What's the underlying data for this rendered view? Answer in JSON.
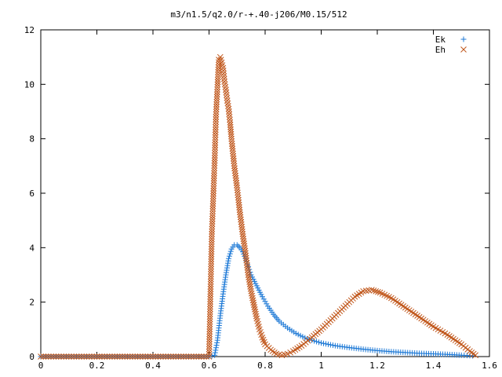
{
  "chart_data": {
    "type": "scatter",
    "title": "m3/n1.5/q2.0/r-+.40-j206/M0.15/512",
    "xlabel": "",
    "ylabel": "",
    "xlim": [
      0,
      1.6
    ],
    "ylim": [
      0,
      12
    ],
    "xticks": [
      "0",
      "0.2",
      "0.4",
      "0.6",
      "0.8",
      "1",
      "1.2",
      "1.4",
      "1.6"
    ],
    "yticks": [
      "0",
      "2",
      "4",
      "6",
      "8",
      "10",
      "12"
    ],
    "grid": false,
    "legend_position": "top-right",
    "series": [
      {
        "name": "Ek",
        "marker": "plus",
        "color": "#1f7ad6",
        "points": [
          [
            0.0,
            0
          ],
          [
            0.1,
            0
          ],
          [
            0.2,
            0
          ],
          [
            0.3,
            0
          ],
          [
            0.4,
            0
          ],
          [
            0.5,
            0
          ],
          [
            0.6,
            0
          ],
          [
            0.62,
            0.05
          ],
          [
            0.63,
            0.6
          ],
          [
            0.64,
            1.5
          ],
          [
            0.65,
            2.3
          ],
          [
            0.66,
            3.0
          ],
          [
            0.67,
            3.6
          ],
          [
            0.68,
            3.95
          ],
          [
            0.69,
            4.1
          ],
          [
            0.7,
            4.1
          ],
          [
            0.71,
            4.0
          ],
          [
            0.72,
            3.85
          ],
          [
            0.73,
            3.6
          ],
          [
            0.74,
            3.3
          ],
          [
            0.75,
            3.0
          ],
          [
            0.77,
            2.6
          ],
          [
            0.79,
            2.2
          ],
          [
            0.81,
            1.85
          ],
          [
            0.83,
            1.55
          ],
          [
            0.85,
            1.3
          ],
          [
            0.88,
            1.05
          ],
          [
            0.91,
            0.85
          ],
          [
            0.95,
            0.65
          ],
          [
            1.0,
            0.5
          ],
          [
            1.05,
            0.4
          ],
          [
            1.1,
            0.33
          ],
          [
            1.15,
            0.27
          ],
          [
            1.2,
            0.22
          ],
          [
            1.25,
            0.18
          ],
          [
            1.3,
            0.15
          ],
          [
            1.35,
            0.12
          ],
          [
            1.4,
            0.1
          ],
          [
            1.45,
            0.08
          ],
          [
            1.5,
            0.05
          ],
          [
            1.54,
            0.03
          ]
        ]
      },
      {
        "name": "Eh",
        "marker": "cross",
        "color": "#c0561a",
        "points": [
          [
            0.0,
            0
          ],
          [
            0.1,
            0
          ],
          [
            0.2,
            0
          ],
          [
            0.3,
            0
          ],
          [
            0.4,
            0
          ],
          [
            0.5,
            0
          ],
          [
            0.6,
            0
          ],
          [
            0.61,
            4.5
          ],
          [
            0.62,
            7.2
          ],
          [
            0.625,
            8.9
          ],
          [
            0.63,
            9.9
          ],
          [
            0.635,
            10.9
          ],
          [
            0.64,
            11.0
          ],
          [
            0.645,
            10.8
          ],
          [
            0.65,
            10.6
          ],
          [
            0.655,
            10.1
          ],
          [
            0.66,
            9.8
          ],
          [
            0.665,
            9.4
          ],
          [
            0.67,
            9.1
          ],
          [
            0.675,
            8.6
          ],
          [
            0.68,
            8.0
          ],
          [
            0.69,
            7.0
          ],
          [
            0.7,
            6.2
          ],
          [
            0.71,
            5.3
          ],
          [
            0.72,
            4.5
          ],
          [
            0.73,
            3.8
          ],
          [
            0.74,
            3.0
          ],
          [
            0.75,
            2.4
          ],
          [
            0.76,
            1.9
          ],
          [
            0.77,
            1.4
          ],
          [
            0.78,
            1.0
          ],
          [
            0.79,
            0.7
          ],
          [
            0.8,
            0.45
          ],
          [
            0.82,
            0.25
          ],
          [
            0.84,
            0.1
          ],
          [
            0.86,
            0.05
          ],
          [
            0.88,
            0.1
          ],
          [
            0.9,
            0.2
          ],
          [
            0.93,
            0.4
          ],
          [
            0.96,
            0.65
          ],
          [
            1.0,
            1.0
          ],
          [
            1.04,
            1.4
          ],
          [
            1.08,
            1.8
          ],
          [
            1.12,
            2.2
          ],
          [
            1.15,
            2.4
          ],
          [
            1.18,
            2.45
          ],
          [
            1.21,
            2.35
          ],
          [
            1.25,
            2.15
          ],
          [
            1.3,
            1.8
          ],
          [
            1.35,
            1.45
          ],
          [
            1.4,
            1.1
          ],
          [
            1.45,
            0.8
          ],
          [
            1.5,
            0.45
          ],
          [
            1.53,
            0.2
          ],
          [
            1.55,
            0.05
          ]
        ]
      }
    ]
  }
}
